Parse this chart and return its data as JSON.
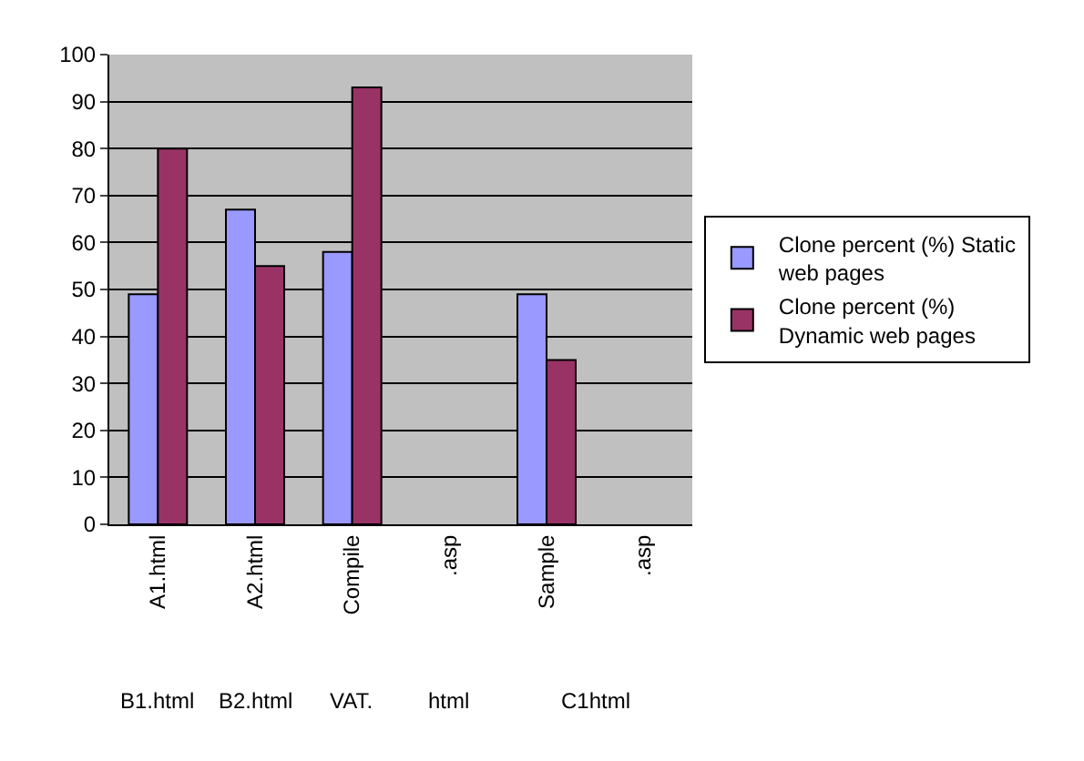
{
  "chart_data": {
    "type": "bar",
    "categories": [
      "A1.html",
      "A2.html",
      "Compile",
      ".asp",
      "Sample",
      ".asp"
    ],
    "series": [
      {
        "name": "Clone percent (%) Static web pages",
        "color": "#9999ff",
        "values": [
          49,
          67,
          58,
          null,
          49,
          null
        ]
      },
      {
        "name": "Clone percent (%) Dynamic web pages",
        "color": "#993366",
        "values": [
          80,
          55,
          93,
          null,
          35,
          null
        ]
      }
    ],
    "annotations": [
      "B1.html",
      "B2.html",
      "VAT.",
      "html",
      "C1html"
    ],
    "ylim": [
      0,
      100
    ],
    "yticks": [
      0,
      10,
      20,
      30,
      40,
      50,
      60,
      70,
      80,
      90,
      100
    ],
    "grid": "y",
    "legend": "right"
  }
}
